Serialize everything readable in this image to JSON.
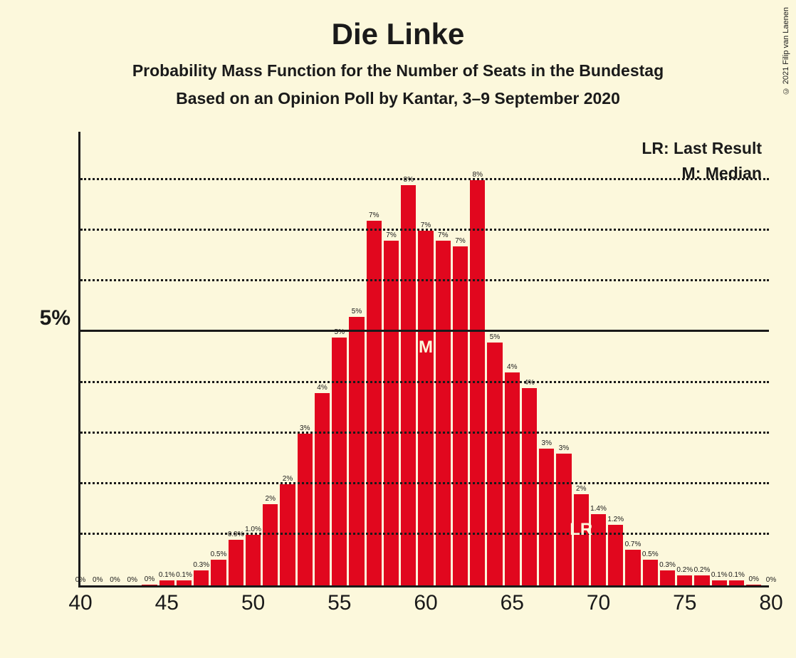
{
  "copyright": "© 2021 Filip van Laenen",
  "title": "Die Linke",
  "subtitle1": "Probability Mass Function for the Number of Seats in the Bundestag",
  "subtitle2": "Based on an Opinion Poll by Kantar, 3–9 September 2020",
  "legend": {
    "lr": "LR: Last Result",
    "m": "M: Median"
  },
  "chart": {
    "type": "bar",
    "background_color": "#fcf8dc",
    "bar_color": "#e1071e",
    "axis_color": "#1a1a1a",
    "grid_dotted_color": "#1a1a1a",
    "xlim": [
      40,
      80
    ],
    "ylim": [
      0,
      9
    ],
    "xticks": [
      40,
      45,
      50,
      55,
      60,
      65,
      70,
      75,
      80
    ],
    "ytick_major": {
      "value": 5,
      "label": "5%"
    },
    "gridlines": [
      {
        "y": 1,
        "style": "dotted"
      },
      {
        "y": 2,
        "style": "dotted"
      },
      {
        "y": 3,
        "style": "dotted"
      },
      {
        "y": 4,
        "style": "dotted"
      },
      {
        "y": 5,
        "style": "solid"
      },
      {
        "y": 6,
        "style": "dotted"
      },
      {
        "y": 7,
        "style": "dotted"
      },
      {
        "y": 8,
        "style": "dotted"
      }
    ],
    "bar_width_ratio": 0.88,
    "bars": [
      {
        "x": 40,
        "value": 0.0,
        "label": "0%"
      },
      {
        "x": 41,
        "value": 0.0,
        "label": "0%"
      },
      {
        "x": 42,
        "value": 0.0,
        "label": "0%"
      },
      {
        "x": 43,
        "value": 0.0,
        "label": "0%"
      },
      {
        "x": 44,
        "value": 0.02,
        "label": "0%"
      },
      {
        "x": 45,
        "value": 0.1,
        "label": "0.1%"
      },
      {
        "x": 46,
        "value": 0.1,
        "label": "0.1%"
      },
      {
        "x": 47,
        "value": 0.3,
        "label": "0.3%"
      },
      {
        "x": 48,
        "value": 0.5,
        "label": "0.5%"
      },
      {
        "x": 49,
        "value": 0.9,
        "label": "0.9%"
      },
      {
        "x": 50,
        "value": 1.0,
        "label": "1.0%"
      },
      {
        "x": 51,
        "value": 1.6,
        "label": "2%"
      },
      {
        "x": 52,
        "value": 2.0,
        "label": "2%"
      },
      {
        "x": 53,
        "value": 3.0,
        "label": "3%"
      },
      {
        "x": 54,
        "value": 3.8,
        "label": "4%"
      },
      {
        "x": 55,
        "value": 4.9,
        "label": "5%"
      },
      {
        "x": 56,
        "value": 5.3,
        "label": "5%"
      },
      {
        "x": 57,
        "value": 7.2,
        "label": "7%"
      },
      {
        "x": 58,
        "value": 6.8,
        "label": "7%"
      },
      {
        "x": 59,
        "value": 7.9,
        "label": "8%"
      },
      {
        "x": 60,
        "value": 7.0,
        "label": "7%"
      },
      {
        "x": 61,
        "value": 6.8,
        "label": "7%"
      },
      {
        "x": 62,
        "value": 6.7,
        "label": "7%"
      },
      {
        "x": 63,
        "value": 8.0,
        "label": "8%"
      },
      {
        "x": 64,
        "value": 4.8,
        "label": "5%"
      },
      {
        "x": 65,
        "value": 4.2,
        "label": "4%"
      },
      {
        "x": 66,
        "value": 3.9,
        "label": "4%"
      },
      {
        "x": 67,
        "value": 2.7,
        "label": "3%"
      },
      {
        "x": 68,
        "value": 2.6,
        "label": "3%"
      },
      {
        "x": 69,
        "value": 1.8,
        "label": "2%"
      },
      {
        "x": 70,
        "value": 1.4,
        "label": "1.4%"
      },
      {
        "x": 71,
        "value": 1.2,
        "label": "1.2%"
      },
      {
        "x": 72,
        "value": 0.7,
        "label": "0.7%"
      },
      {
        "x": 73,
        "value": 0.5,
        "label": "0.5%"
      },
      {
        "x": 74,
        "value": 0.3,
        "label": "0.3%"
      },
      {
        "x": 75,
        "value": 0.2,
        "label": "0.2%"
      },
      {
        "x": 76,
        "value": 0.2,
        "label": "0.2%"
      },
      {
        "x": 77,
        "value": 0.1,
        "label": "0.1%"
      },
      {
        "x": 78,
        "value": 0.1,
        "label": "0.1%"
      },
      {
        "x": 79,
        "value": 0.02,
        "label": "0%"
      },
      {
        "x": 80,
        "value": 0.0,
        "label": "0%"
      }
    ],
    "markers": {
      "median": {
        "x": 60,
        "label": "M",
        "bottom_pct": 50
      },
      "last_result": {
        "x": 69,
        "label": "LR",
        "bottom_pct": 10
      }
    },
    "title_fontsize": 42,
    "subtitle_fontsize": 23,
    "axis_tick_fontsize": 30,
    "bar_label_fontsize": 10,
    "legend_fontsize": 23
  }
}
